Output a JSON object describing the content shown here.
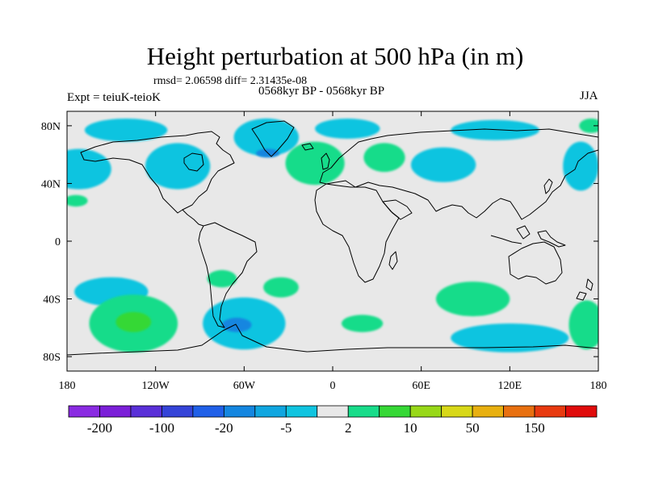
{
  "title": "Height perturbation at 500 hPa (in m)",
  "stats_line": "rmsd= 2.06598 diff= 2.31435e-08",
  "experiment": "Expt = teiuK-teioK",
  "period": "0568kyr BP - 0568kyr BP",
  "season": "JJA",
  "chart_data": {
    "type": "heatmap",
    "title": "Height perturbation at 500 hPa (in m)",
    "xlabel": "",
    "ylabel": "",
    "xlim": [
      -180,
      180
    ],
    "ylim": [
      -90,
      90
    ],
    "x_ticks": [
      {
        "value": -180,
        "label": "180"
      },
      {
        "value": -120,
        "label": "120W"
      },
      {
        "value": -60,
        "label": "60W"
      },
      {
        "value": 0,
        "label": "0"
      },
      {
        "value": 60,
        "label": "60E"
      },
      {
        "value": 120,
        "label": "120E"
      },
      {
        "value": 180,
        "label": "180"
      }
    ],
    "y_ticks": [
      {
        "value": 80,
        "label": "80N"
      },
      {
        "value": 40,
        "label": "40N"
      },
      {
        "value": 0,
        "label": "0"
      },
      {
        "value": -40,
        "label": "40S"
      },
      {
        "value": -80,
        "label": "80S"
      }
    ],
    "background_color": "#e8e8e8",
    "colorbar": {
      "colors": [
        "#8a2be2",
        "#7b1fd8",
        "#5a30d8",
        "#3544d8",
        "#2060e8",
        "#1486e0",
        "#10a6e0",
        "#10c4e0",
        "#e8e8e8",
        "#18dc8a",
        "#36d836",
        "#98d818",
        "#d8d818",
        "#e8b010",
        "#e87010",
        "#e83a10",
        "#e00c0c"
      ],
      "labels": [
        {
          "text": "-200",
          "after_box": 1
        },
        {
          "text": "-100",
          "after_box": 3
        },
        {
          "text": "-20",
          "after_box": 5
        },
        {
          "text": "-5",
          "after_box": 7
        },
        {
          "text": "2",
          "after_box": 9
        },
        {
          "text": "10",
          "after_box": 11
        },
        {
          "text": "50",
          "after_box": 13
        },
        {
          "text": "150",
          "after_box": 15
        }
      ]
    },
    "anomalies": [
      {
        "name": "arctic-pacific-negative",
        "lon": -140,
        "lat": 77,
        "rx": 28,
        "ry": 8,
        "level": -5
      },
      {
        "name": "greenland-negative",
        "lon": -45,
        "lat": 72,
        "rx": 22,
        "ry": 13,
        "level": -5
      },
      {
        "name": "greenland-core-negative",
        "lon": -44,
        "lat": 61,
        "rx": 8,
        "ry": 3,
        "level": -20
      },
      {
        "name": "arctic-europe-negative",
        "lon": 10,
        "lat": 78,
        "rx": 22,
        "ry": 7,
        "level": -5
      },
      {
        "name": "arctic-asia-negative",
        "lon": 110,
        "lat": 77,
        "rx": 30,
        "ry": 7,
        "level": -5
      },
      {
        "name": "north-pacific-negative",
        "lon": -172,
        "lat": 50,
        "rx": 22,
        "ry": 14,
        "level": -5
      },
      {
        "name": "hudson-negative",
        "lon": -105,
        "lat": 52,
        "rx": 22,
        "ry": 16,
        "level": -5
      },
      {
        "name": "siberia-negative",
        "lon": 75,
        "lat": 53,
        "rx": 22,
        "ry": 12,
        "level": -5
      },
      {
        "name": "kamchatka-negative",
        "lon": 168,
        "lat": 52,
        "rx": 12,
        "ry": 17,
        "level": -5
      },
      {
        "name": "north-atlantic-positive",
        "lon": -12,
        "lat": 54,
        "rx": 20,
        "ry": 15,
        "level": 2
      },
      {
        "name": "scandinavia-positive",
        "lon": 35,
        "lat": 58,
        "rx": 14,
        "ry": 10,
        "level": 2
      },
      {
        "name": "aleutian-positive",
        "lon": 175,
        "lat": 80,
        "rx": 8,
        "ry": 5,
        "level": 2
      },
      {
        "name": "subtropical-pacific-positive",
        "lon": -174,
        "lat": 28,
        "rx": 8,
        "ry": 4,
        "level": 2
      },
      {
        "name": "southeast-pacific-positive",
        "lon": -75,
        "lat": -26,
        "rx": 10,
        "ry": 6,
        "level": 2
      },
      {
        "name": "south-atlantic-positive",
        "lon": -35,
        "lat": -32,
        "rx": 12,
        "ry": 7,
        "level": 2
      },
      {
        "name": "south-pacific-west-negative",
        "lon": -150,
        "lat": -35,
        "rx": 25,
        "ry": 10,
        "level": -5
      },
      {
        "name": "south-pacific-positive",
        "lon": -135,
        "lat": -57,
        "rx": 30,
        "ry": 20,
        "level": 2
      },
      {
        "name": "south-pacific-core-positive",
        "lon": -135,
        "lat": -56,
        "rx": 12,
        "ry": 7,
        "level": 10
      },
      {
        "name": "southern-ocean-negative",
        "lon": -60,
        "lat": -57,
        "rx": 28,
        "ry": 18,
        "level": -5
      },
      {
        "name": "drake-core-negative",
        "lon": -65,
        "lat": -58,
        "rx": 10,
        "ry": 5,
        "level": -20
      },
      {
        "name": "south-indian-positive",
        "lon": 95,
        "lat": -40,
        "rx": 25,
        "ry": 12,
        "level": 2
      },
      {
        "name": "south-atlantic-east-positive",
        "lon": 20,
        "lat": -57,
        "rx": 14,
        "ry": 6,
        "level": 2
      },
      {
        "name": "antarctic-indian-negative",
        "lon": 120,
        "lat": -67,
        "rx": 40,
        "ry": 10,
        "level": -5
      },
      {
        "name": "new-zealand-positive",
        "lon": 172,
        "lat": -58,
        "rx": 12,
        "ry": 17,
        "level": 2
      }
    ]
  }
}
